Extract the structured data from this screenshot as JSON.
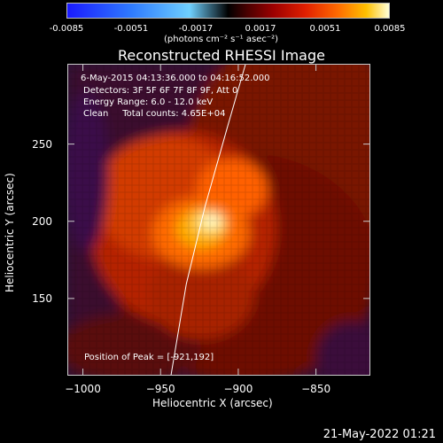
{
  "colorbar": {
    "ticks": [
      "-0.0085",
      "-0.0051",
      "-0.0017",
      "0.0017",
      "0.0051",
      "0.0085"
    ],
    "unit_label": "(photons cm⁻² s⁻¹ asec⁻²)"
  },
  "chart_data": {
    "type": "heatmap",
    "title": "Reconstructed RHESSI Image",
    "xlabel": "Heliocentric X (arcsec)",
    "ylabel": "Heliocentric Y (arcsec)",
    "xlim": [
      -1010,
      -815
    ],
    "ylim": [
      100,
      302
    ],
    "xticks": [
      -1000,
      -950,
      -900,
      -850
    ],
    "yticks": [
      150,
      200,
      250
    ],
    "color_range": [
      -0.0085,
      0.0085
    ],
    "peak": {
      "x": -921,
      "y": 192
    },
    "info_lines": [
      "6-May-2015 04:13:36.000 to 04:16:52.000",
      "Detectors: 3F 5F 6F 7F 8F 9F, Att 0",
      "Energy Range: 6.0 - 12.0 keV",
      "Clean     Total counts: 4.65E+04"
    ],
    "peak_label": "Position of Peak = [-921,192]",
    "limb_curve": {
      "x": [
        -944,
        -934,
        -922,
        -908,
        -896
      ],
      "y": [
        100,
        160,
        210,
        260,
        302
      ]
    }
  },
  "timestamp": "21-May-2022 01:21"
}
